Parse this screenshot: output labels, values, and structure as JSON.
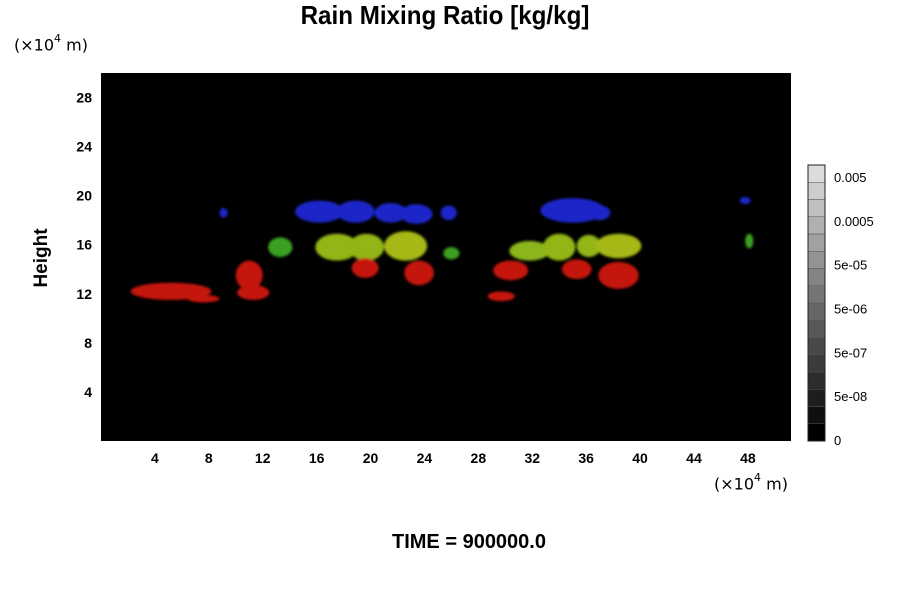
{
  "chart_data": {
    "type": "heatmap",
    "title": "Rain Mixing Ratio [kg/kg]",
    "ylabel": "Height",
    "x_unit": {
      "prefix": "(×10",
      "exp": "4",
      "suffix": " m)"
    },
    "y_unit": {
      "prefix": "(×10",
      "exp": "4",
      "suffix": " m)"
    },
    "xlim": [
      0,
      51.2
    ],
    "ylim": [
      0,
      30
    ],
    "xticks": [
      "4",
      "8",
      "12",
      "16",
      "20",
      "24",
      "28",
      "32",
      "36",
      "40",
      "44",
      "48"
    ],
    "yticks": [
      "4",
      "8",
      "12",
      "16",
      "20",
      "24",
      "28"
    ],
    "background_color": "#000000",
    "colorbar": {
      "labels": [
        "0",
        "5e-08",
        "5e-07",
        "5e-06",
        "5e-05",
        "0.0005",
        "0.005"
      ],
      "levels": 16
    },
    "annotation": "TIME = 900000.0",
    "regions": [
      {
        "name": "blue",
        "color": "#1a25c8",
        "cx": 16.2,
        "cy": 18.7,
        "rx": 1.8,
        "ry": 0.9
      },
      {
        "name": "blue",
        "color": "#1a25c8",
        "cx": 18.9,
        "cy": 18.7,
        "rx": 1.4,
        "ry": 0.9
      },
      {
        "name": "blue",
        "color": "#1a25c8",
        "cx": 21.5,
        "cy": 18.6,
        "rx": 1.2,
        "ry": 0.8
      },
      {
        "name": "blue",
        "color": "#1a25c8",
        "cx": 23.4,
        "cy": 18.5,
        "rx": 1.2,
        "ry": 0.8
      },
      {
        "name": "blue",
        "color": "#1a25c8",
        "cx": 25.8,
        "cy": 18.6,
        "rx": 0.6,
        "ry": 0.6
      },
      {
        "name": "blue",
        "color": "#1a25c8",
        "cx": 35.0,
        "cy": 18.8,
        "rx": 2.4,
        "ry": 1.0
      },
      {
        "name": "blue",
        "color": "#1a25c8",
        "cx": 37.0,
        "cy": 18.6,
        "rx": 0.8,
        "ry": 0.6
      },
      {
        "name": "blue",
        "color": "#1a25c8",
        "cx": 9.1,
        "cy": 18.6,
        "rx": 0.3,
        "ry": 0.4
      },
      {
        "name": "blue",
        "color": "#1a25c8",
        "cx": 47.8,
        "cy": 19.6,
        "rx": 0.4,
        "ry": 0.3
      },
      {
        "name": "green",
        "color": "#3aa020",
        "cx": 13.3,
        "cy": 15.8,
        "rx": 0.9,
        "ry": 0.8
      },
      {
        "name": "green",
        "color": "#3aa020",
        "cx": 26.0,
        "cy": 15.3,
        "rx": 0.6,
        "ry": 0.5
      },
      {
        "name": "green",
        "color": "#3aa020",
        "cx": 48.1,
        "cy": 16.3,
        "rx": 0.3,
        "ry": 0.6
      },
      {
        "name": "yellow-green",
        "color": "#93b516",
        "cx": 17.5,
        "cy": 15.8,
        "rx": 1.6,
        "ry": 1.1
      },
      {
        "name": "yellow-green",
        "color": "#93b516",
        "cx": 19.7,
        "cy": 15.8,
        "rx": 1.3,
        "ry": 1.1
      },
      {
        "name": "yellow-green",
        "color": "#a5b812",
        "cx": 22.6,
        "cy": 15.9,
        "rx": 1.6,
        "ry": 1.2
      },
      {
        "name": "yellow-green",
        "color": "#8cb51a",
        "cx": 31.8,
        "cy": 15.5,
        "rx": 1.5,
        "ry": 0.8
      },
      {
        "name": "yellow-green",
        "color": "#93b516",
        "cx": 34.0,
        "cy": 15.8,
        "rx": 1.2,
        "ry": 1.1
      },
      {
        "name": "yellow-green",
        "color": "#93b516",
        "cx": 36.2,
        "cy": 15.9,
        "rx": 0.9,
        "ry": 0.9
      },
      {
        "name": "yellow-green",
        "color": "#a5b812",
        "cx": 38.4,
        "cy": 15.9,
        "rx": 1.7,
        "ry": 1.0
      },
      {
        "name": "red",
        "color": "#c5150f",
        "cx": 5.2,
        "cy": 12.2,
        "rx": 3.0,
        "ry": 0.7
      },
      {
        "name": "red",
        "color": "#c5150f",
        "cx": 7.6,
        "cy": 11.6,
        "rx": 1.2,
        "ry": 0.3
      },
      {
        "name": "red",
        "color": "#c5150f",
        "cx": 11.0,
        "cy": 13.5,
        "rx": 1.0,
        "ry": 1.2
      },
      {
        "name": "red",
        "color": "#c5150f",
        "cx": 11.3,
        "cy": 12.1,
        "rx": 1.2,
        "ry": 0.6
      },
      {
        "name": "red",
        "color": "#c5150f",
        "cx": 19.6,
        "cy": 14.1,
        "rx": 1.0,
        "ry": 0.8
      },
      {
        "name": "red",
        "color": "#c5150f",
        "cx": 23.6,
        "cy": 13.7,
        "rx": 1.1,
        "ry": 1.0
      },
      {
        "name": "red",
        "color": "#c5150f",
        "cx": 30.4,
        "cy": 13.9,
        "rx": 1.3,
        "ry": 0.8
      },
      {
        "name": "red",
        "color": "#c5150f",
        "cx": 29.7,
        "cy": 11.8,
        "rx": 1.0,
        "ry": 0.4
      },
      {
        "name": "red",
        "color": "#c5150f",
        "cx": 35.3,
        "cy": 14.0,
        "rx": 1.1,
        "ry": 0.8
      },
      {
        "name": "red",
        "color": "#c5150f",
        "cx": 38.4,
        "cy": 13.5,
        "rx": 1.5,
        "ry": 1.1
      }
    ]
  }
}
